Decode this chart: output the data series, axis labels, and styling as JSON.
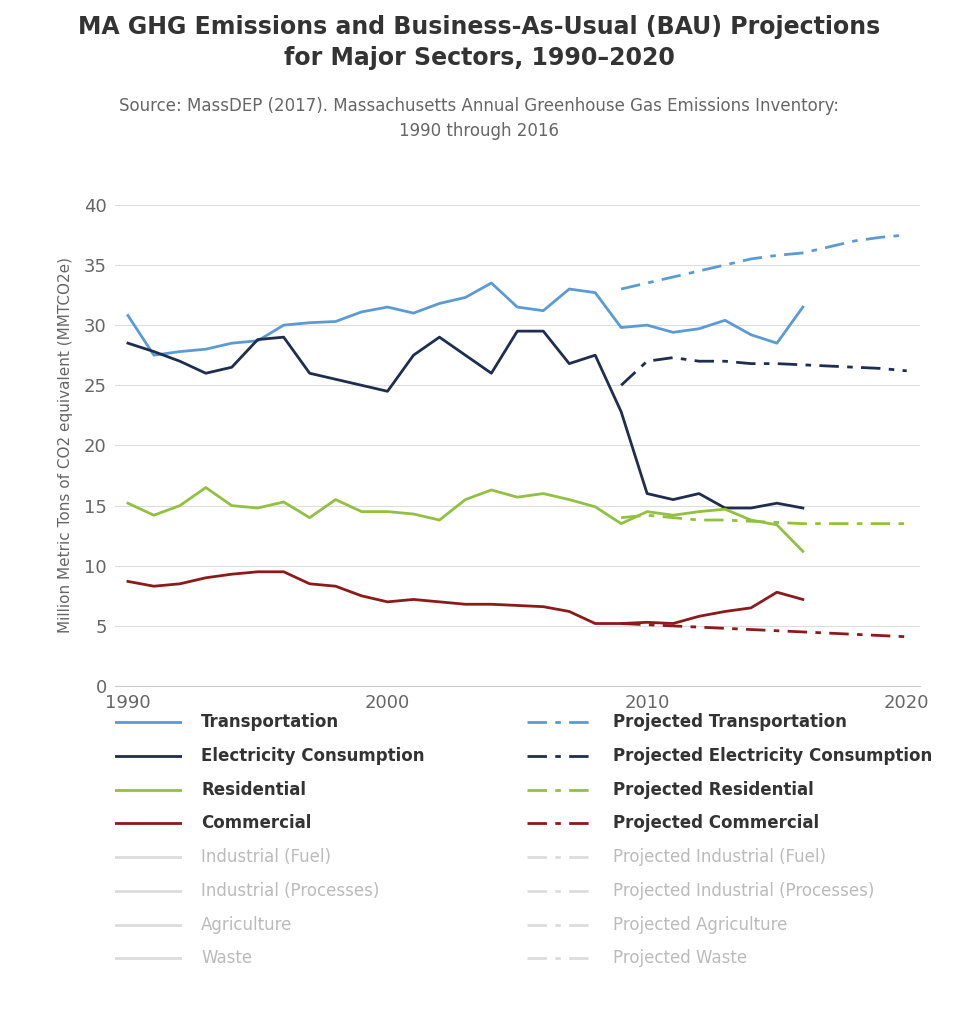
{
  "title_line1": "MA GHG Emissions and Business-As-Usual (BAU) Projections",
  "title_line2": "for Major Sectors, 1990–2020",
  "subtitle": "Source: MassDEP (2017). Massachusetts Annual Greenhouse Gas Emissions Inventory:\n1990 through 2016",
  "ylabel": "Million Metric Tons of CO2 equivalent (MMTCO2e)",
  "years_actual": [
    1990,
    1991,
    1992,
    1993,
    1994,
    1995,
    1996,
    1997,
    1998,
    1999,
    2000,
    2001,
    2002,
    2003,
    2004,
    2005,
    2006,
    2007,
    2008,
    2009,
    2010,
    2011,
    2012,
    2013,
    2014,
    2015,
    2016
  ],
  "years_proj": [
    2009,
    2010,
    2011,
    2012,
    2013,
    2014,
    2015,
    2016,
    2017,
    2018,
    2019,
    2020
  ],
  "transportation": [
    30.8,
    27.5,
    27.8,
    28.0,
    28.5,
    28.7,
    30.0,
    30.2,
    30.3,
    31.1,
    31.5,
    31.0,
    31.8,
    32.3,
    33.5,
    31.5,
    31.2,
    33.0,
    32.7,
    29.8,
    30.0,
    29.4,
    29.7,
    30.4,
    29.2,
    28.5,
    31.5
  ],
  "proj_transportation": [
    33.0,
    33.5,
    34.0,
    34.5,
    35.0,
    35.5,
    35.8,
    36.0,
    36.5,
    37.0,
    37.3,
    37.5
  ],
  "electricity": [
    28.5,
    27.8,
    27.0,
    26.0,
    26.5,
    28.8,
    29.0,
    26.0,
    25.5,
    25.0,
    24.5,
    27.5,
    29.0,
    27.5,
    26.0,
    29.5,
    29.5,
    26.8,
    27.5,
    22.8,
    16.0,
    15.5,
    16.0,
    14.8,
    14.8,
    15.2,
    14.8
  ],
  "proj_electricity": [
    25.0,
    27.0,
    27.3,
    27.0,
    27.0,
    26.8,
    26.8,
    26.7,
    26.6,
    26.5,
    26.4,
    26.2
  ],
  "residential": [
    15.2,
    14.2,
    15.0,
    16.5,
    15.0,
    14.8,
    15.3,
    14.0,
    15.5,
    14.5,
    14.5,
    14.3,
    13.8,
    15.5,
    16.3,
    15.7,
    16.0,
    15.5,
    14.9,
    13.5,
    14.5,
    14.2,
    14.5,
    14.7,
    13.8,
    13.4,
    11.2
  ],
  "proj_residential": [
    14.0,
    14.2,
    14.0,
    13.8,
    13.8,
    13.7,
    13.6,
    13.5,
    13.5,
    13.5,
    13.5,
    13.5
  ],
  "commercial": [
    8.7,
    8.3,
    8.5,
    9.0,
    9.3,
    9.5,
    9.5,
    8.5,
    8.3,
    7.5,
    7.0,
    7.2,
    7.0,
    6.8,
    6.8,
    6.7,
    6.6,
    6.2,
    5.2,
    5.2,
    5.3,
    5.2,
    5.8,
    6.2,
    6.5,
    7.8,
    7.2
  ],
  "proj_commercial": [
    5.2,
    5.1,
    5.0,
    4.9,
    4.8,
    4.7,
    4.6,
    4.5,
    4.4,
    4.3,
    4.2,
    4.1
  ],
  "color_transportation": "#5B9BD5",
  "color_electricity": "#1F2D4E",
  "color_residential": "#92C040",
  "color_commercial": "#8B1A1A",
  "color_grey": "#BBBBBB",
  "ylim": [
    0,
    40
  ],
  "yticks": [
    0,
    5,
    10,
    15,
    20,
    25,
    30,
    35,
    40
  ],
  "xlim": [
    1989.5,
    2020.5
  ]
}
